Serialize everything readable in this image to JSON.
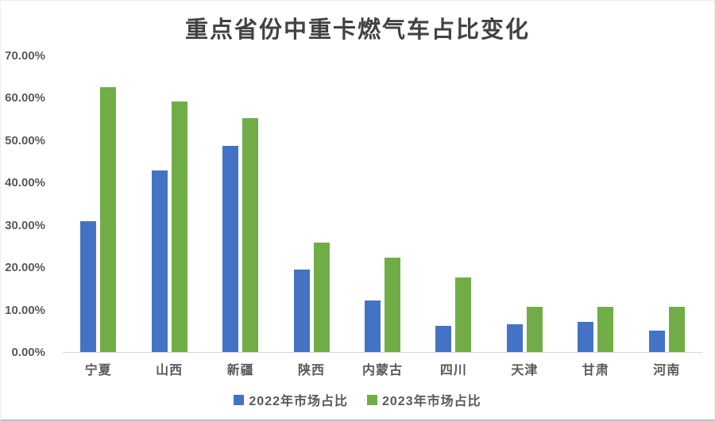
{
  "chart_data": {
    "type": "bar",
    "title": "重点省份中重卡燃气车占比变化",
    "categories": [
      "宁夏",
      "山西",
      "新疆",
      "陕西",
      "内蒙古",
      "四川",
      "天津",
      "甘肃",
      "河南"
    ],
    "series": [
      {
        "name": "2022年市场占比",
        "color": "#4472C4",
        "values": [
          30.9,
          42.8,
          48.7,
          19.5,
          12.2,
          6.1,
          6.6,
          7.1,
          5.0
        ]
      },
      {
        "name": "2023年市场占比",
        "color": "#70AD47",
        "values": [
          62.5,
          59.2,
          55.3,
          25.8,
          22.3,
          17.6,
          10.6,
          10.7,
          10.7
        ]
      }
    ],
    "xlabel": "",
    "ylabel": "",
    "ylim": [
      0,
      70
    ],
    "yticks": [
      "0.00%",
      "10.00%",
      "20.00%",
      "30.00%",
      "40.00%",
      "50.00%",
      "60.00%",
      "70.00%"
    ],
    "grid": false,
    "legend_position": "bottom",
    "axis_line_color": "#d9d9d9",
    "text_color": "#595959",
    "title_color": "#424242",
    "background_color": "#ffffff"
  }
}
